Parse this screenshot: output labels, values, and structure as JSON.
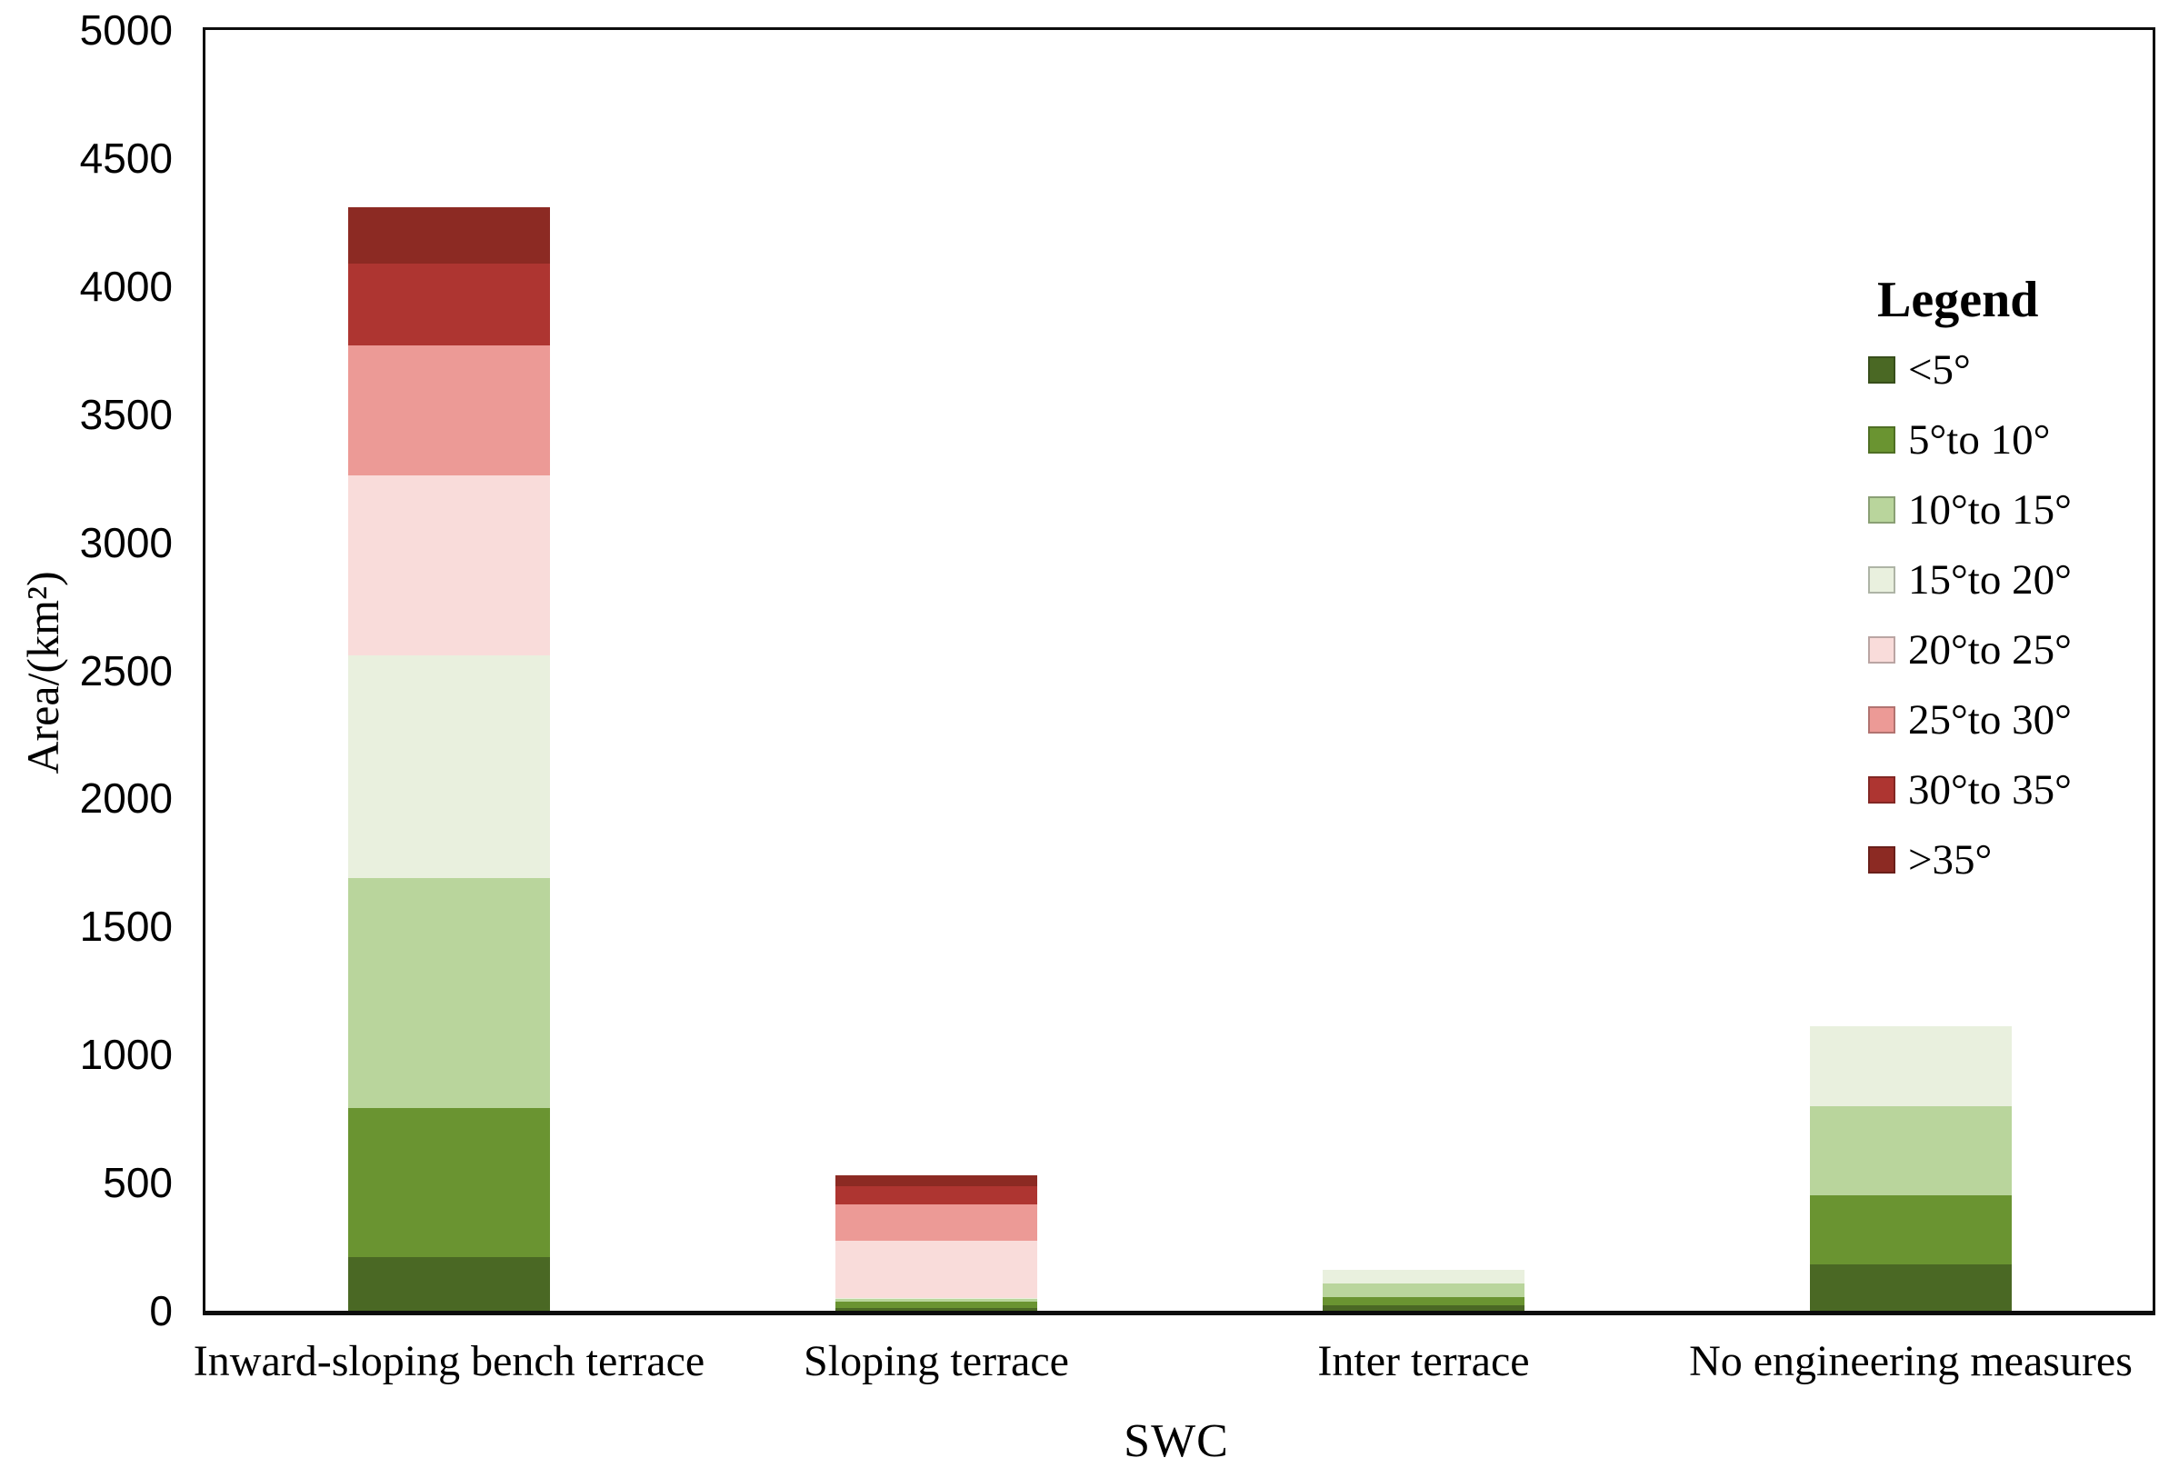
{
  "chart_data": {
    "type": "bar",
    "stacked": true,
    "title": "",
    "xlabel": "SWC",
    "ylabel": "Area/(km²)",
    "ylim": [
      0,
      5000
    ],
    "ytick_step": 500,
    "grid": false,
    "legend": {
      "title": "Legend",
      "position": "right-inside"
    },
    "categories": [
      "Inward-sloping bench terrace",
      "Sloping terrace",
      "Inter terrace",
      "No engineering measures"
    ],
    "series": [
      {
        "name": "<5°",
        "color": "#4a6824",
        "values": [
          210,
          12,
          20,
          180
        ]
      },
      {
        "name": "5°to 10°",
        "color": "#6a9431",
        "values": [
          580,
          25,
          35,
          270
        ]
      },
      {
        "name": "10°to 15°",
        "color": "#b9d59c",
        "values": [
          900,
          8,
          50,
          350
        ]
      },
      {
        "name": "15°to 20°",
        "color": "#e9f0de",
        "values": [
          870,
          5,
          55,
          310
        ]
      },
      {
        "name": "20°to 25°",
        "color": "#f9dcda",
        "values": [
          700,
          225,
          0,
          0
        ]
      },
      {
        "name": "25°to 30°",
        "color": "#ec9a96",
        "values": [
          510,
          140,
          0,
          0
        ]
      },
      {
        "name": "30°to 35°",
        "color": "#ae3531",
        "values": [
          320,
          70,
          0,
          0
        ]
      },
      {
        "name": ">35°",
        "color": "#8c2a23",
        "values": [
          220,
          45,
          0,
          0
        ]
      }
    ]
  }
}
